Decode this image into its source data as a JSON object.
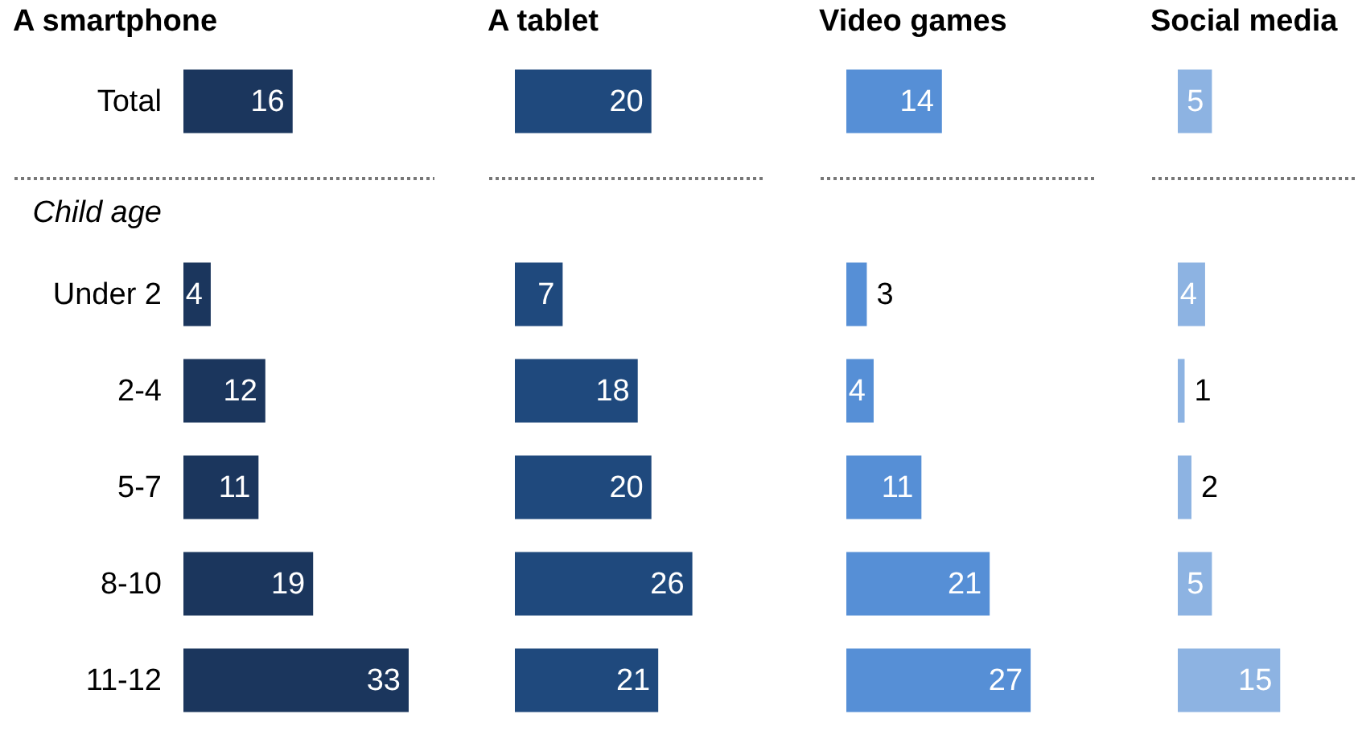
{
  "chart_data": [
    {
      "type": "bar",
      "orientation": "horizontal",
      "title": "A smartphone",
      "categories": [
        "Total",
        "Child age",
        "Under 2",
        "2-4",
        "5-7",
        "8-10",
        "11-12"
      ],
      "values": [
        16,
        null,
        4,
        12,
        11,
        19,
        33
      ],
      "color": "#1b365d",
      "data_labels": true,
      "tick_labels": "y",
      "ref_lines": [
        {
          "axis": "y",
          "value": "Child age",
          "color": "#777777",
          "line_style": "dotted"
        }
      ]
    },
    {
      "type": "bar",
      "orientation": "horizontal",
      "title": "A tablet",
      "categories": [
        "Total",
        "Child age",
        "Under 2",
        "2-4",
        "5-7",
        "8-10",
        "11-12"
      ],
      "values": [
        20,
        null,
        7,
        18,
        20,
        26,
        21
      ],
      "color": "#1f497d",
      "data_labels": true,
      "tick_labels": false,
      "ref_lines": [
        {
          "axis": "y",
          "value": "Child age",
          "color": "#777777",
          "line_style": "dotted"
        }
      ]
    },
    {
      "type": "bar",
      "orientation": "horizontal",
      "title": "Video games",
      "categories": [
        "Total",
        "Child age",
        "Under 2",
        "2-4",
        "5-7",
        "8-10",
        "11-12"
      ],
      "values": [
        14,
        null,
        3,
        4,
        11,
        21,
        27
      ],
      "color": "#568fd6",
      "data_labels": true,
      "tick_labels": false,
      "ref_lines": [
        {
          "axis": "y",
          "value": "Child age",
          "color": "#777777",
          "line_style": "dotted"
        }
      ]
    },
    {
      "type": "bar",
      "orientation": "horizontal",
      "title": "Social media",
      "categories": [
        "Total",
        "Child age",
        "Under 2",
        "2-4",
        "5-7",
        "8-10",
        "11-12"
      ],
      "values": [
        5,
        null,
        4,
        1,
        2,
        5,
        15
      ],
      "color": "#8db3e2",
      "data_labels": true,
      "tick_labels": false,
      "ref_lines": [
        {
          "axis": "y",
          "value": "Child age",
          "color": "#777777",
          "line_style": "dotted"
        }
      ]
    }
  ]
}
